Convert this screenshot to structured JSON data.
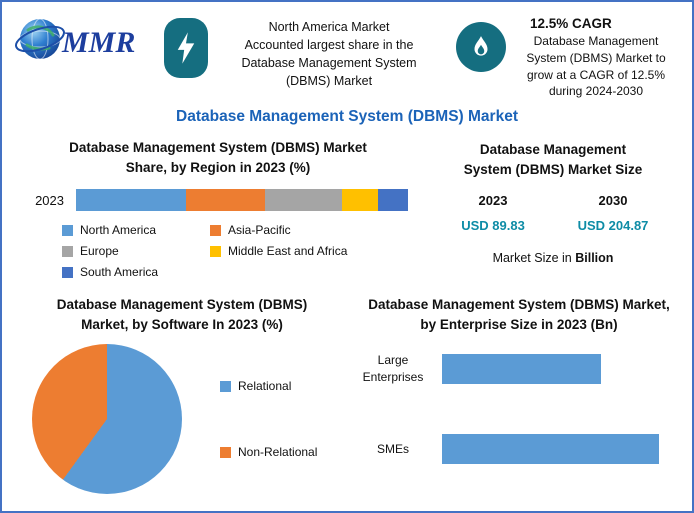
{
  "page": {
    "title": "Database Management System (DBMS) Market",
    "accent_blue": "#1b63b8",
    "teal": "#156e80",
    "border_color": "#4472c4"
  },
  "header": {
    "logo_text": "MMR",
    "highlight_region": {
      "icon": "lightning-icon",
      "text": "North America Market\nAccounted largest share in the\nDatabase Management System\n(DBMS) Market"
    },
    "highlight_cagr": {
      "icon": "flame-icon",
      "title": "12.5% CAGR",
      "text": "Database Management\nSystem (DBMS) Market to\ngrow at a CAGR of 12.5%\nduring 2024-2030"
    }
  },
  "market_size": {
    "title": "Database Management\nSystem (DBMS) Market Size",
    "columns": [
      {
        "year": "2023",
        "value": "USD 89.83"
      },
      {
        "year": "2030",
        "value": "USD 204.87"
      }
    ],
    "note_regular": "Market Size in ",
    "note_bold": "Billion",
    "value_color": "#0e8ca6"
  },
  "chart_data": [
    {
      "id": "region-share",
      "type": "bar",
      "subtype": "stacked-horizontal",
      "title": "Database Management System (DBMS) Market Share, by Region in 2023 (%)",
      "categories": [
        "2023"
      ],
      "series": [
        {
          "name": "North America",
          "color": "#5b9bd5",
          "values": [
            33
          ]
        },
        {
          "name": "Asia-Pacific",
          "color": "#ed7d31",
          "values": [
            24
          ]
        },
        {
          "name": "Europe",
          "color": "#a5a5a5",
          "values": [
            23
          ]
        },
        {
          "name": "Middle East and Africa",
          "color": "#ffc000",
          "values": [
            11
          ]
        },
        {
          "name": "South America",
          "color": "#4472c4",
          "values": [
            9
          ]
        }
      ],
      "xlim": [
        0,
        100
      ],
      "legend_position": "bottom",
      "grid": false
    },
    {
      "id": "software-split",
      "type": "pie",
      "title": "Database Management System (DBMS) Market, by Software In 2023 (%)",
      "labels": [
        "Relational",
        "Non-Relational"
      ],
      "values": [
        60,
        40
      ],
      "colors": [
        "#5b9bd5",
        "#ed7d31"
      ],
      "legend_position": "right"
    },
    {
      "id": "enterprise-size",
      "type": "bar",
      "subtype": "horizontal",
      "title": "Database Management System (DBMS) Market, by Enterprise Size in 2023 (Bn)",
      "categories": [
        "Large Enterprises",
        "SMEs"
      ],
      "values": [
        38,
        52
      ],
      "color": "#5b9bd5",
      "xlim": [
        0,
        55
      ],
      "grid": false
    }
  ]
}
